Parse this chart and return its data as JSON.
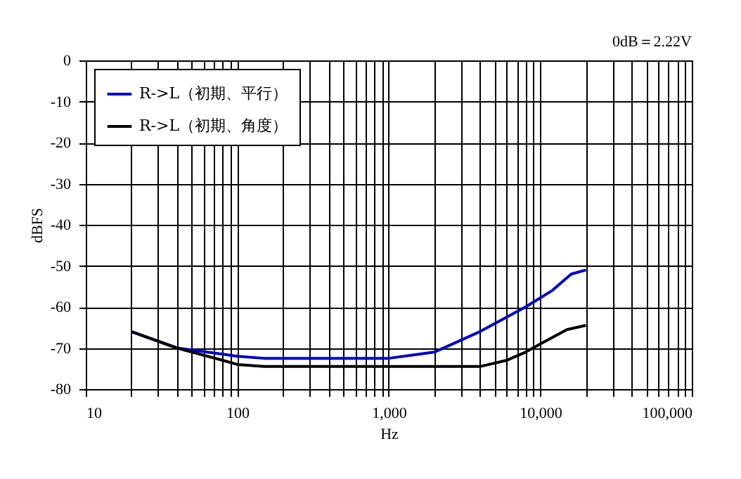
{
  "chart_data": {
    "type": "line",
    "xlabel": "Hz",
    "ylabel": "dBFS",
    "annotations": [
      "0dB＝2.22V"
    ],
    "log": "x",
    "grid": true,
    "legend": "top left",
    "marker": "none",
    "line_style": "solid",
    "xlim": [
      10,
      100000
    ],
    "ylim": [
      -80,
      0
    ],
    "xticks": [
      10,
      {
        "value": 20,
        "label": null
      },
      {
        "value": 30,
        "label": null
      },
      {
        "value": 40,
        "label": null
      },
      {
        "value": 50,
        "label": null
      },
      {
        "value": 60,
        "label": null
      },
      {
        "value": 70,
        "label": null
      },
      {
        "value": 80,
        "label": null
      },
      {
        "value": 90,
        "label": null
      },
      100,
      {
        "value": 200,
        "label": null
      },
      {
        "value": 300,
        "label": null
      },
      {
        "value": 400,
        "label": null
      },
      {
        "value": 500,
        "label": null
      },
      {
        "value": 600,
        "label": null
      },
      {
        "value": 700,
        "label": null
      },
      {
        "value": 800,
        "label": null
      },
      {
        "value": 900,
        "label": null
      },
      {
        "value": 1000,
        "label": "1,000"
      },
      {
        "value": 2000,
        "label": null
      },
      {
        "value": 3000,
        "label": null
      },
      {
        "value": 4000,
        "label": null
      },
      {
        "value": 5000,
        "label": null
      },
      {
        "value": 6000,
        "label": null
      },
      {
        "value": 7000,
        "label": null
      },
      {
        "value": 8000,
        "label": null
      },
      {
        "value": 9000,
        "label": null
      },
      {
        "value": 10000,
        "label": "10,000"
      },
      {
        "value": 20000,
        "label": null
      },
      {
        "value": 30000,
        "label": null
      },
      {
        "value": 40000,
        "label": null
      },
      {
        "value": 50000,
        "label": null
      },
      {
        "value": 60000,
        "label": null
      },
      {
        "value": 70000,
        "label": null
      },
      {
        "value": 80000,
        "label": null
      },
      {
        "value": 90000,
        "label": null
      },
      {
        "value": 100000,
        "label": "100,000"
      }
    ],
    "yticks": [
      -80,
      -70,
      -60,
      -50,
      -40,
      -30,
      -20,
      -10,
      0
    ],
    "series": [
      {
        "name": "R->L（初期、平行）",
        "color": "#0000c0",
        "x": [
          20,
          40,
          80,
          100,
          150,
          500,
          1000,
          2000,
          4000,
          8000,
          12000,
          16000,
          20000
        ],
        "values": [
          -66,
          -70,
          -71.5,
          -72,
          -72.5,
          -72.5,
          -72.5,
          -71,
          -66,
          -60,
          -56,
          -52,
          -51
        ]
      },
      {
        "name": "R->L（初期、角度）",
        "color": "#000000",
        "x": [
          20,
          40,
          80,
          100,
          150,
          1000,
          4000,
          6000,
          8000,
          10000,
          15000,
          20000
        ],
        "values": [
          -66,
          -70,
          -73,
          -74,
          -74.5,
          -74.5,
          -74.5,
          -73,
          -71,
          -69,
          -65.5,
          -64.5
        ]
      }
    ]
  }
}
